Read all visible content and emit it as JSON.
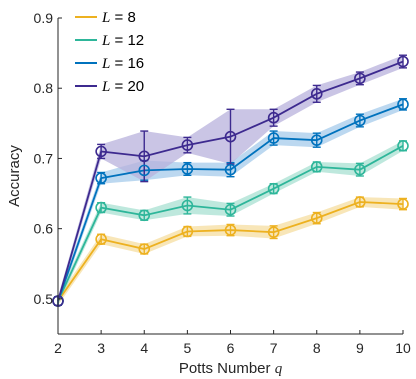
{
  "chart_data": {
    "type": "line",
    "xlabel_prefix": "Potts Number ",
    "xlabel_var": "q",
    "ylabel": "Accuracy",
    "x": [
      2,
      3,
      4,
      5,
      6,
      7,
      8,
      9,
      10
    ],
    "xlim": [
      2,
      10
    ],
    "ylim": [
      0.45,
      0.9
    ],
    "xticks": [
      "2",
      "3",
      "4",
      "5",
      "6",
      "7",
      "8",
      "9",
      "10"
    ],
    "yticks": [
      "0.5",
      "0.6",
      "0.7",
      "0.8",
      "0.9"
    ],
    "ytick_values": [
      0.5,
      0.6,
      0.7,
      0.8,
      0.9
    ],
    "grid": false,
    "legend_position": "top-left",
    "series": [
      {
        "legend_var": "L",
        "legend_rest": " = 8",
        "color": "#EDB120",
        "fill": "#F6DDA0",
        "values": [
          0.497,
          0.585,
          0.571,
          0.596,
          0.598,
          0.595,
          0.615,
          0.638,
          0.635
        ],
        "errors": [
          0.006,
          0.007,
          0.007,
          0.007,
          0.008,
          0.009,
          0.008,
          0.007,
          0.008
        ]
      },
      {
        "legend_var": "L",
        "legend_rest": " = 12",
        "color": "#2EB69A",
        "fill": "#A8E0D2",
        "values": [
          0.497,
          0.63,
          0.619,
          0.633,
          0.627,
          0.657,
          0.688,
          0.684,
          0.718
        ],
        "errors": [
          0.006,
          0.007,
          0.007,
          0.012,
          0.009,
          0.007,
          0.007,
          0.009,
          0.007
        ]
      },
      {
        "legend_var": "L",
        "legend_rest": " = 16",
        "color": "#0072BD",
        "fill": "#A6CBEB",
        "values": [
          0.497,
          0.672,
          0.683,
          0.685,
          0.684,
          0.729,
          0.726,
          0.754,
          0.777
        ],
        "errors": [
          0.006,
          0.008,
          0.014,
          0.009,
          0.01,
          0.01,
          0.01,
          0.009,
          0.008
        ]
      },
      {
        "legend_var": "L",
        "legend_rest": " = 20",
        "color": "#3D2A8F",
        "fill": "#B8B2DC",
        "values": [
          0.497,
          0.71,
          0.703,
          0.719,
          0.731,
          0.758,
          0.792,
          0.814,
          0.838
        ],
        "errors": [
          0.006,
          0.01,
          0.036,
          0.011,
          0.039,
          0.012,
          0.012,
          0.009,
          0.009
        ]
      }
    ]
  }
}
